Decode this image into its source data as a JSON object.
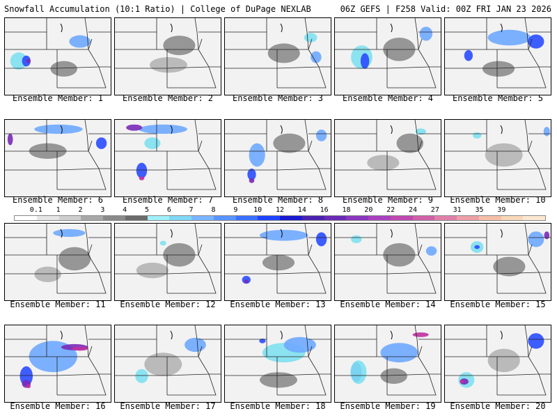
{
  "header": {
    "left": "Snowfall Accumulation (10:1 Ratio) | College of DuPage NEXLAB",
    "right": "06Z GEFS | F258 Valid: 00Z FRI JAN 23 2026"
  },
  "colors": {
    "light_gray": "#dcdcdc",
    "mid_gray": "#b4b4b4",
    "dark_gray": "#8c8c8c",
    "cyan": "#7fe0f0",
    "light_blue": "#6ea8ff",
    "blue": "#2a4cff",
    "purple": "#7a2ab8",
    "magenta": "#c030a0",
    "border": "#222222"
  },
  "colorbar": {
    "ticks": [
      "0.1",
      "1",
      "2",
      "3",
      "4",
      "5",
      "6",
      "7",
      "8",
      "9",
      "10",
      "12",
      "14",
      "16",
      "18",
      "20",
      "22",
      "24",
      "27",
      "31",
      "35",
      "39"
    ],
    "colors": [
      "#ffffff",
      "#e6e6e6",
      "#cfcfcf",
      "#a8a8a8",
      "#8a8a8a",
      "#6b6b6b",
      "#9ff0f8",
      "#7fd8f5",
      "#7ab4ff",
      "#5a94ff",
      "#3a70ff",
      "#1e44ff",
      "#1a1ad0",
      "#4a22b0",
      "#6a2ab8",
      "#8a36c0",
      "#a840c0",
      "#c048b0",
      "#d060a8",
      "#e080a8",
      "#eda0a8",
      "#f5c0a8",
      "#f8d8b8",
      "#fbe8d0"
    ]
  },
  "members": [
    {
      "caption": "Ensemble Member: 1",
      "blobs": [
        [
          "cyan",
          0.13,
          0.55,
          0.16,
          0.22
        ],
        [
          "blue",
          0.2,
          0.55,
          0.08,
          0.14
        ],
        [
          "purple",
          0.22,
          0.55,
          0.04,
          0.06
        ],
        [
          "light_blue",
          0.7,
          0.3,
          0.2,
          0.16
        ],
        [
          "dark_gray",
          0.55,
          0.65,
          0.25,
          0.2
        ]
      ]
    },
    {
      "caption": "Ensemble Member: 2",
      "blobs": [
        [
          "dark_gray",
          0.6,
          0.35,
          0.3,
          0.25
        ],
        [
          "mid_gray",
          0.5,
          0.6,
          0.35,
          0.2
        ]
      ]
    },
    {
      "caption": "Ensemble Member: 3",
      "blobs": [
        [
          "cyan",
          0.8,
          0.25,
          0.12,
          0.12
        ],
        [
          "light_blue",
          0.85,
          0.5,
          0.1,
          0.15
        ],
        [
          "dark_gray",
          0.55,
          0.45,
          0.3,
          0.25
        ]
      ]
    },
    {
      "caption": "Ensemble Member: 4",
      "blobs": [
        [
          "cyan",
          0.25,
          0.5,
          0.2,
          0.3
        ],
        [
          "blue",
          0.28,
          0.55,
          0.08,
          0.2
        ],
        [
          "light_blue",
          0.85,
          0.2,
          0.12,
          0.18
        ],
        [
          "dark_gray",
          0.6,
          0.4,
          0.3,
          0.3
        ]
      ]
    },
    {
      "caption": "Ensemble Member: 5",
      "blobs": [
        [
          "light_blue",
          0.6,
          0.25,
          0.4,
          0.2
        ],
        [
          "blue",
          0.85,
          0.3,
          0.15,
          0.18
        ],
        [
          "blue",
          0.22,
          0.48,
          0.08,
          0.14
        ],
        [
          "dark_gray",
          0.5,
          0.65,
          0.3,
          0.2
        ]
      ]
    },
    {
      "caption": "Ensemble Member: 6",
      "blobs": [
        [
          "light_blue",
          0.5,
          0.12,
          0.45,
          0.12
        ],
        [
          "purple",
          0.05,
          0.25,
          0.05,
          0.15
        ],
        [
          "blue",
          0.9,
          0.3,
          0.1,
          0.15
        ],
        [
          "dark_gray",
          0.4,
          0.4,
          0.35,
          0.2
        ]
      ]
    },
    {
      "caption": "Ensemble Member: 7",
      "blobs": [
        [
          "light_blue",
          0.45,
          0.12,
          0.45,
          0.12
        ],
        [
          "purple",
          0.18,
          0.1,
          0.15,
          0.08
        ],
        [
          "blue",
          0.25,
          0.65,
          0.1,
          0.2
        ],
        [
          "magenta",
          0.25,
          0.75,
          0.05,
          0.05
        ],
        [
          "cyan",
          0.35,
          0.3,
          0.15,
          0.15
        ]
      ]
    },
    {
      "caption": "Ensemble Member: 8",
      "blobs": [
        [
          "light_blue",
          0.3,
          0.45,
          0.15,
          0.3
        ],
        [
          "blue",
          0.25,
          0.7,
          0.08,
          0.15
        ],
        [
          "purple",
          0.25,
          0.78,
          0.05,
          0.06
        ],
        [
          "dark_gray",
          0.6,
          0.3,
          0.3,
          0.25
        ],
        [
          "light_blue",
          0.9,
          0.2,
          0.1,
          0.15
        ]
      ]
    },
    {
      "caption": "Ensemble Member: 9",
      "blobs": [
        [
          "dark_gray",
          0.7,
          0.3,
          0.25,
          0.25
        ],
        [
          "cyan",
          0.8,
          0.15,
          0.1,
          0.08
        ],
        [
          "mid_gray",
          0.45,
          0.55,
          0.3,
          0.2
        ]
      ]
    },
    {
      "caption": "Ensemble Member: 10",
      "blobs": [
        [
          "mid_gray",
          0.55,
          0.45,
          0.35,
          0.3
        ],
        [
          "light_blue",
          0.95,
          0.15,
          0.06,
          0.12
        ],
        [
          "cyan",
          0.3,
          0.2,
          0.08,
          0.08
        ]
      ]
    },
    {
      "caption": "Ensemble Member: 11",
      "blobs": [
        [
          "light_blue",
          0.6,
          0.12,
          0.3,
          0.1
        ],
        [
          "dark_gray",
          0.65,
          0.45,
          0.3,
          0.3
        ],
        [
          "mid_gray",
          0.4,
          0.65,
          0.25,
          0.2
        ]
      ]
    },
    {
      "caption": "Ensemble Member: 12",
      "blobs": [
        [
          "dark_gray",
          0.6,
          0.4,
          0.3,
          0.3
        ],
        [
          "mid_gray",
          0.35,
          0.6,
          0.3,
          0.2
        ],
        [
          "cyan",
          0.45,
          0.25,
          0.06,
          0.06
        ]
      ]
    },
    {
      "caption": "Ensemble Member: 13",
      "blobs": [
        [
          "light_blue",
          0.55,
          0.15,
          0.45,
          0.14
        ],
        [
          "blue",
          0.9,
          0.2,
          0.1,
          0.18
        ],
        [
          "blue",
          0.2,
          0.72,
          0.08,
          0.1
        ],
        [
          "purple",
          0.2,
          0.74,
          0.04,
          0.05
        ],
        [
          "dark_gray",
          0.5,
          0.5,
          0.3,
          0.2
        ]
      ]
    },
    {
      "caption": "Ensemble Member: 14",
      "blobs": [
        [
          "cyan",
          0.2,
          0.2,
          0.1,
          0.1
        ],
        [
          "dark_gray",
          0.6,
          0.4,
          0.3,
          0.3
        ],
        [
          "light_blue",
          0.9,
          0.35,
          0.1,
          0.12
        ]
      ]
    },
    {
      "caption": "Ensemble Member: 15",
      "blobs": [
        [
          "light_blue",
          0.85,
          0.2,
          0.15,
          0.2
        ],
        [
          "purple",
          0.95,
          0.15,
          0.05,
          0.1
        ],
        [
          "cyan",
          0.3,
          0.3,
          0.12,
          0.15
        ],
        [
          "blue",
          0.3,
          0.3,
          0.05,
          0.05
        ],
        [
          "dark_gray",
          0.6,
          0.55,
          0.3,
          0.25
        ]
      ]
    },
    {
      "caption": "Ensemble Member: 16",
      "blobs": [
        [
          "light_blue",
          0.45,
          0.4,
          0.45,
          0.4
        ],
        [
          "purple",
          0.65,
          0.28,
          0.25,
          0.08
        ],
        [
          "magenta",
          0.7,
          0.3,
          0.15,
          0.05
        ],
        [
          "blue",
          0.2,
          0.65,
          0.12,
          0.25
        ],
        [
          "purple",
          0.2,
          0.75,
          0.08,
          0.1
        ],
        [
          "magenta",
          0.22,
          0.78,
          0.04,
          0.05
        ]
      ]
    },
    {
      "caption": "Ensemble Member: 17",
      "blobs": [
        [
          "light_blue",
          0.75,
          0.25,
          0.2,
          0.18
        ],
        [
          "cyan",
          0.25,
          0.65,
          0.12,
          0.18
        ],
        [
          "mid_gray",
          0.45,
          0.5,
          0.35,
          0.3
        ]
      ]
    },
    {
      "caption": "Ensemble Member: 18",
      "blobs": [
        [
          "cyan",
          0.55,
          0.35,
          0.4,
          0.25
        ],
        [
          "light_blue",
          0.7,
          0.25,
          0.3,
          0.2
        ],
        [
          "blue",
          0.35,
          0.2,
          0.06,
          0.06
        ],
        [
          "dark_gray",
          0.5,
          0.7,
          0.35,
          0.2
        ]
      ]
    },
    {
      "caption": "Ensemble Member: 19",
      "blobs": [
        [
          "light_blue",
          0.6,
          0.35,
          0.35,
          0.25
        ],
        [
          "magenta",
          0.8,
          0.12,
          0.15,
          0.06
        ],
        [
          "blue",
          0.2,
          0.6,
          0.1,
          0.25
        ],
        [
          "cyan",
          0.22,
          0.6,
          0.15,
          0.3
        ],
        [
          "dark_gray",
          0.55,
          0.65,
          0.25,
          0.2
        ]
      ]
    },
    {
      "caption": "Ensemble Member: 20",
      "blobs": [
        [
          "cyan",
          0.2,
          0.7,
          0.15,
          0.2
        ],
        [
          "purple",
          0.18,
          0.72,
          0.08,
          0.08
        ],
        [
          "magenta",
          0.16,
          0.72,
          0.04,
          0.04
        ],
        [
          "blue",
          0.85,
          0.2,
          0.15,
          0.2
        ],
        [
          "mid_gray",
          0.55,
          0.45,
          0.3,
          0.3
        ]
      ]
    }
  ]
}
